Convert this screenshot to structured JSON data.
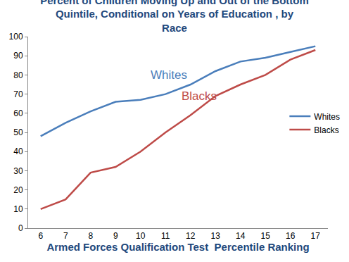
{
  "chart_data": {
    "type": "line",
    "title": "Percent of Children Moving Up and Out of the Bottom Quintile, Conditional on Years of Education , by Race",
    "x_label": "Armed Forces Qualification Test  Percentile Ranking",
    "categories": [
      "6",
      "7",
      "8",
      "9",
      "10",
      "11",
      "12",
      "13",
      "14",
      "15",
      "16",
      "17"
    ],
    "series": [
      {
        "name": "Whites",
        "color": "#4a7ebb",
        "values": [
          48,
          55,
          61,
          66,
          67,
          70,
          75,
          82,
          87,
          89,
          92,
          95
        ]
      },
      {
        "name": "Blacks",
        "color": "#be4b48",
        "values": [
          10,
          15,
          29,
          32,
          40,
          50,
          59,
          69,
          75,
          80,
          88,
          93
        ]
      }
    ],
    "annotations": [
      "Whites",
      "Blacks"
    ],
    "ylim": [
      0,
      100
    ],
    "yticks": [
      0,
      10,
      20,
      30,
      40,
      50,
      60,
      70,
      80,
      90,
      100
    ],
    "grid": false,
    "legend": "right"
  }
}
